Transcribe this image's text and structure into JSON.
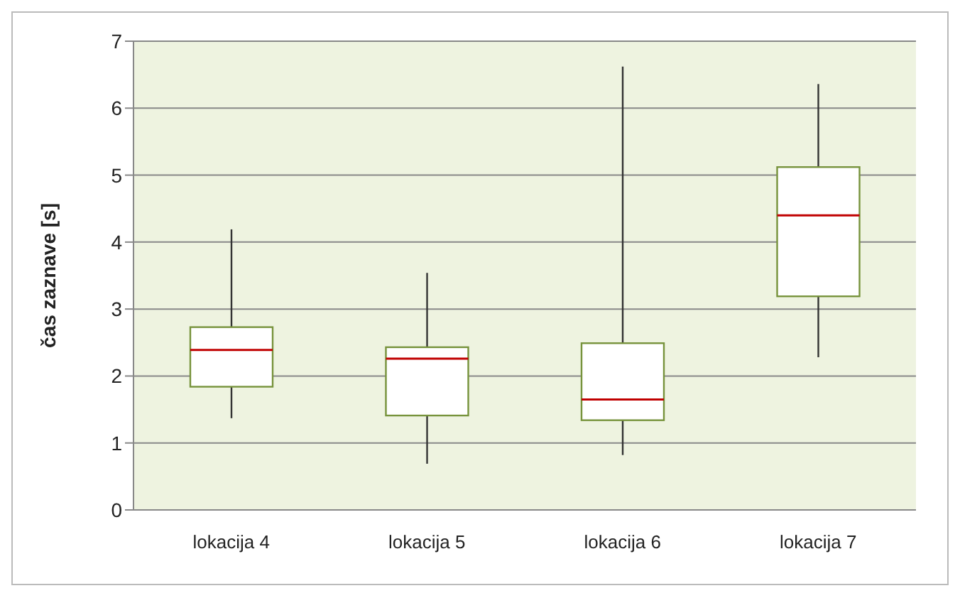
{
  "chart_data": {
    "type": "box",
    "ylabel": "čas zaznave [s]",
    "categories": [
      "lokacija 4",
      "lokacija 5",
      "lokacija 6",
      "lokacija 7"
    ],
    "boxes": [
      {
        "low": 1.37,
        "q1": 1.84,
        "median": 2.39,
        "q3": 2.73,
        "high": 4.19
      },
      {
        "low": 0.69,
        "q1": 1.41,
        "median": 2.26,
        "q3": 2.43,
        "high": 3.54
      },
      {
        "low": 0.82,
        "q1": 1.34,
        "median": 1.65,
        "q3": 2.49,
        "high": 6.62
      },
      {
        "low": 2.28,
        "q1": 3.19,
        "median": 4.4,
        "q3": 5.12,
        "high": 6.36
      }
    ],
    "color": "#77933c",
    "ylim": [
      0,
      7
    ],
    "yticks": [
      0,
      1,
      2,
      3,
      4,
      5,
      6,
      7
    ],
    "grid": "y"
  }
}
